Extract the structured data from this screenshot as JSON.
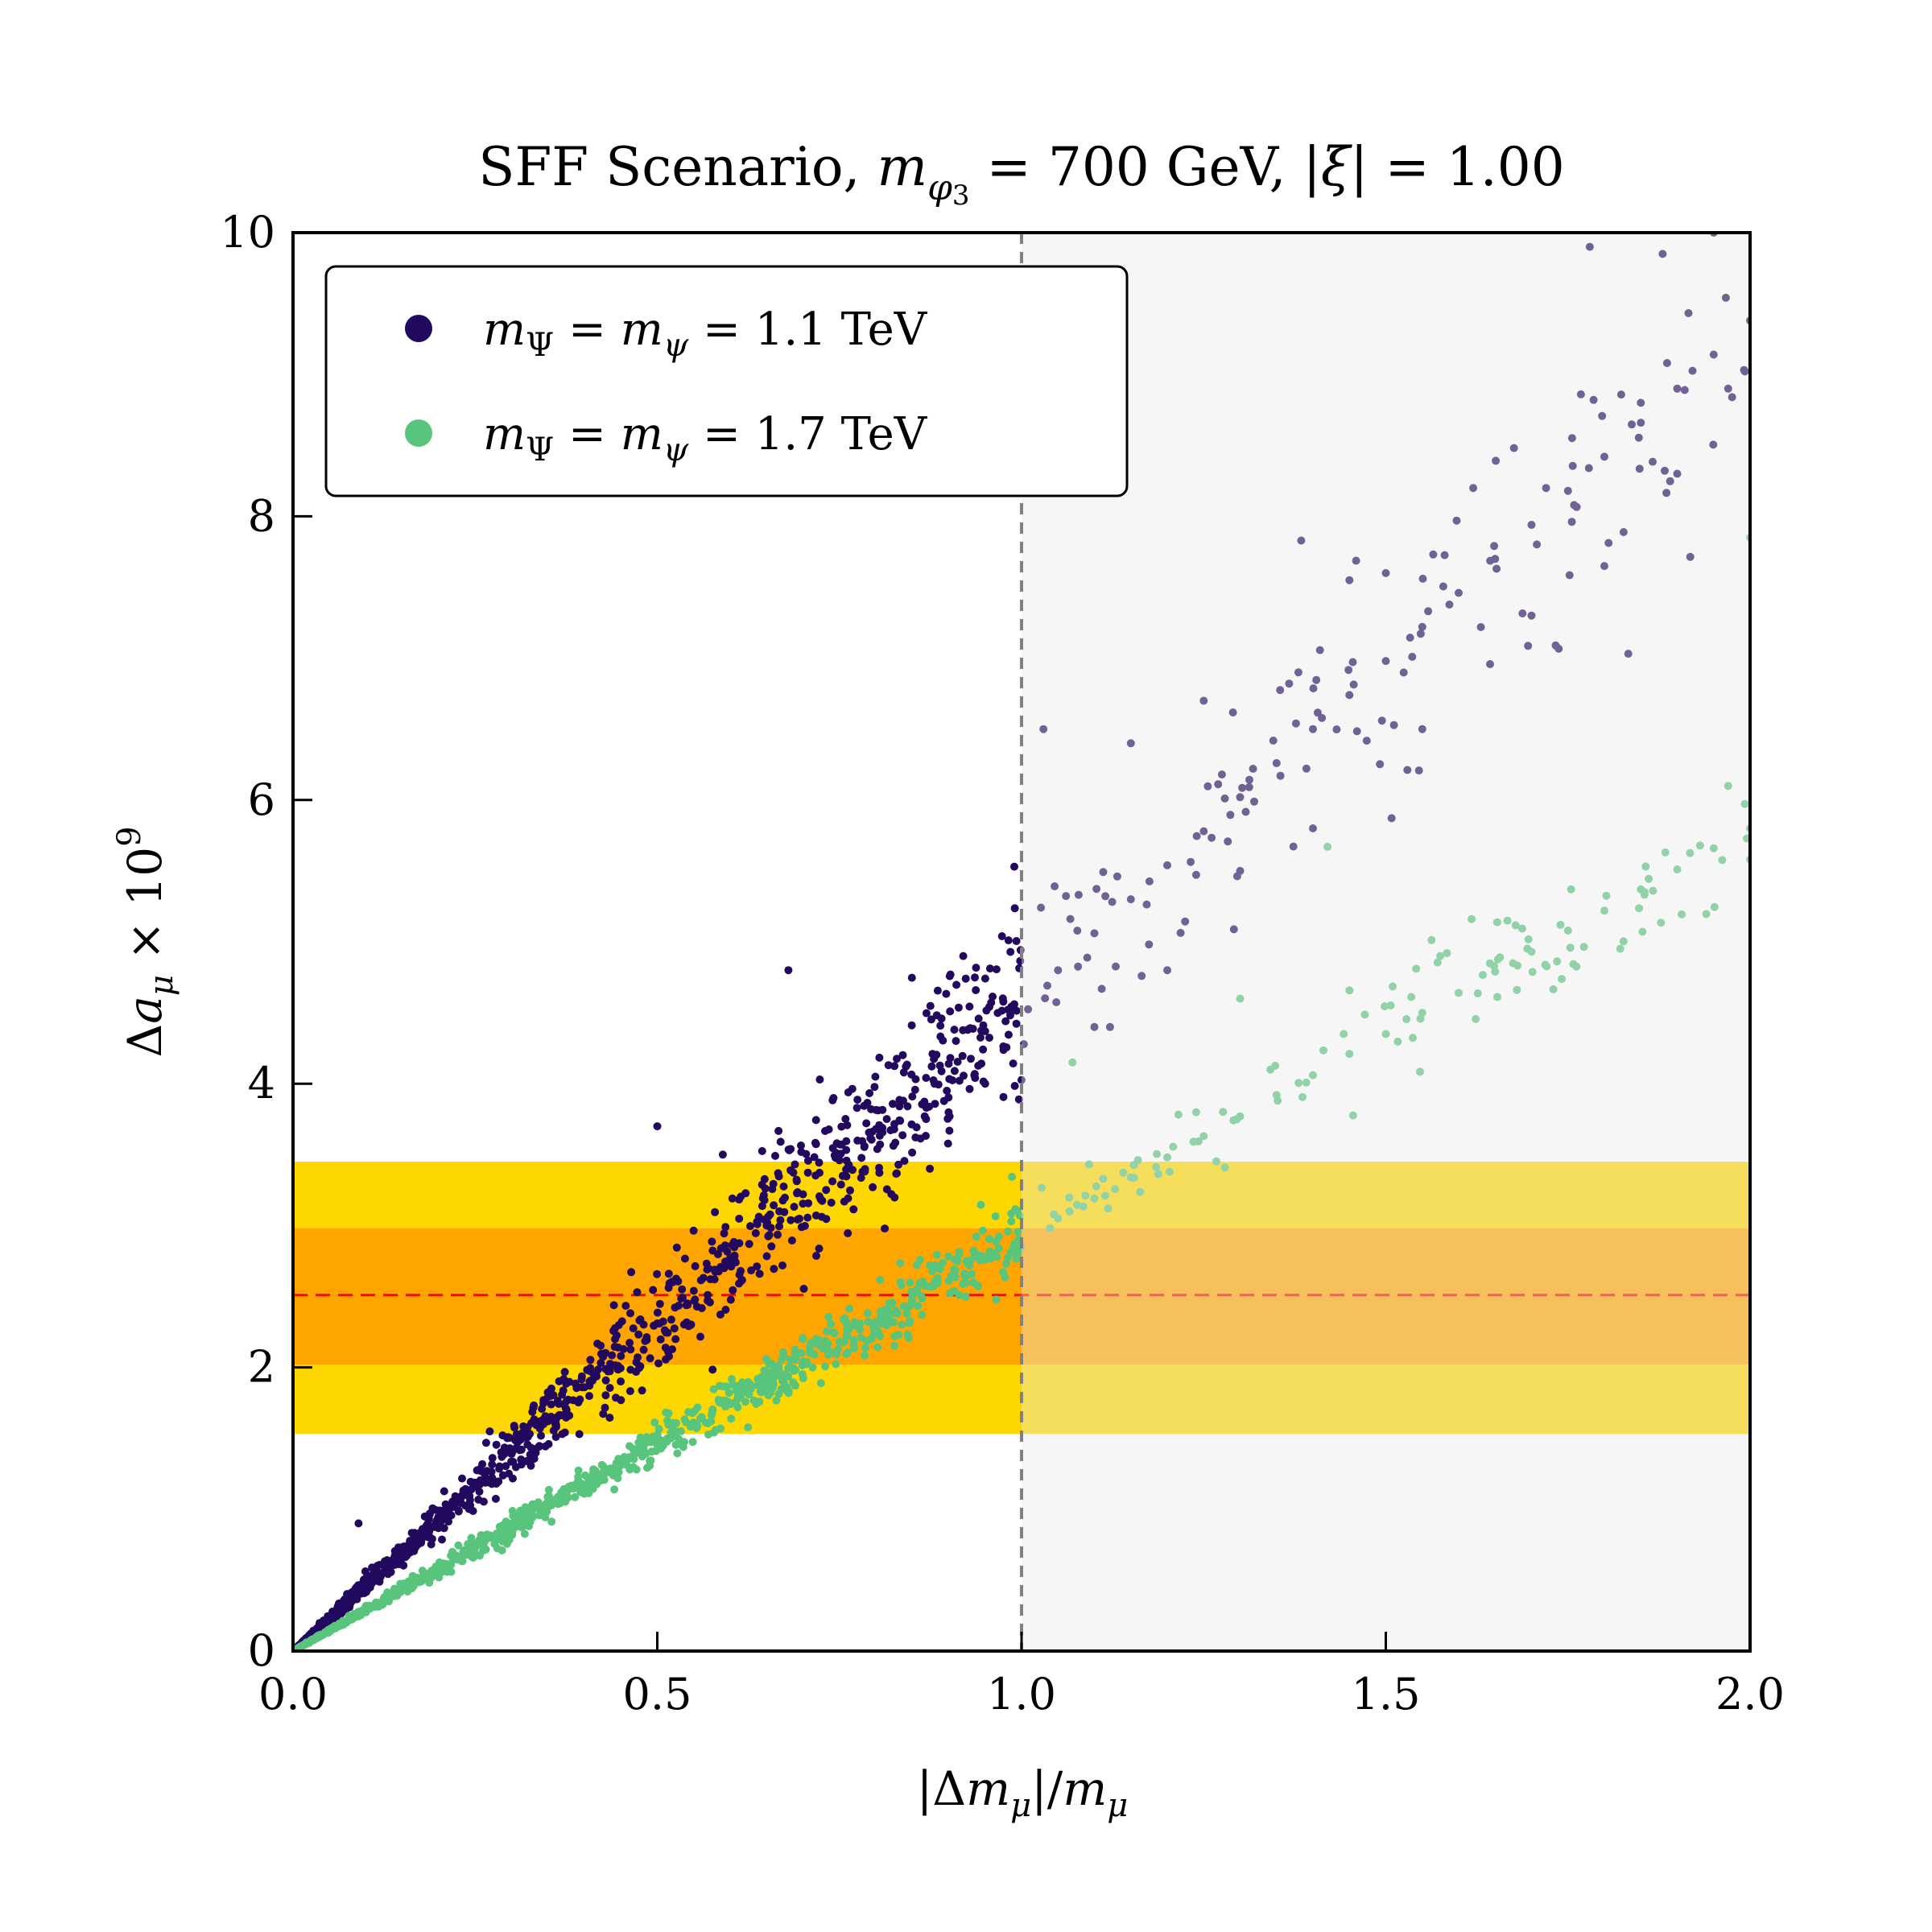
{
  "chart_data": {
    "type": "scatter",
    "title": "SFF Scenario, m_φ₃ = 700 GeV, |ξ| = 1.00",
    "xlabel": "|Δm_μ|/m_μ",
    "ylabel": "Δa_μ × 10⁹",
    "xlim": [
      0.0,
      2.0
    ],
    "ylim": [
      0,
      10
    ],
    "xticks": [
      "0.0",
      "0.5",
      "1.0",
      "1.5",
      "2.0"
    ],
    "yticks": [
      "0",
      "2",
      "4",
      "6",
      "8",
      "10"
    ],
    "grid": false,
    "legend_position": "top-left",
    "series": [
      {
        "name": "m_Ψ = m_ψ = 1.1 TeV",
        "color": "#22095e",
        "relation": "y ≈ 4.6 x",
        "x_range": [
          0.0,
          2.0
        ],
        "points": [
          [
            0.05,
            0.24
          ],
          [
            0.1,
            0.47
          ],
          [
            0.15,
            0.7
          ],
          [
            0.2,
            0.93
          ],
          [
            0.25,
            1.16
          ],
          [
            0.3,
            1.39
          ],
          [
            0.35,
            1.62
          ],
          [
            0.4,
            1.86
          ],
          [
            0.45,
            2.08
          ],
          [
            0.5,
            2.31
          ],
          [
            0.55,
            2.54
          ],
          [
            0.6,
            2.77
          ],
          [
            0.65,
            3.0
          ],
          [
            0.7,
            3.22
          ],
          [
            0.75,
            3.46
          ],
          [
            0.8,
            3.68
          ],
          [
            0.85,
            3.91
          ],
          [
            0.9,
            4.14
          ],
          [
            0.95,
            4.37
          ],
          [
            0.99,
            4.56
          ],
          [
            0.09,
            0.9
          ],
          [
            0.5,
            3.7
          ],
          [
            0.59,
            3.5
          ],
          [
            0.68,
            4.8
          ],
          [
            0.92,
            4.9
          ],
          [
            0.99,
            5.53
          ],
          [
            0.95,
            4.0
          ],
          [
            1.05,
            4.8
          ],
          [
            1.1,
            5.06
          ],
          [
            1.15,
            5.3
          ],
          [
            1.2,
            5.54
          ],
          [
            1.25,
            5.78
          ],
          [
            1.3,
            6.02
          ],
          [
            1.35,
            6.26
          ],
          [
            1.4,
            6.5
          ],
          [
            1.45,
            6.74
          ],
          [
            1.5,
            6.98
          ],
          [
            1.55,
            7.22
          ],
          [
            1.6,
            7.46
          ],
          [
            1.65,
            7.7
          ],
          [
            1.7,
            7.94
          ],
          [
            1.75,
            8.18
          ],
          [
            1.8,
            8.42
          ],
          [
            1.85,
            8.66
          ],
          [
            1.9,
            8.9
          ],
          [
            1.95,
            9.14
          ],
          [
            2.0,
            9.38
          ],
          [
            1.03,
            6.5
          ],
          [
            1.15,
            6.4
          ],
          [
            1.25,
            6.7
          ],
          [
            1.38,
            6.9
          ],
          [
            1.45,
            7.55
          ],
          [
            1.5,
            7.6
          ],
          [
            1.62,
            8.2
          ],
          [
            1.72,
            8.2
          ],
          [
            1.78,
            9.9
          ],
          [
            1.88,
            9.85
          ],
          [
            1.95,
            10.0
          ],
          [
            1.1,
            4.4
          ],
          [
            1.2,
            4.8
          ],
          [
            1.3,
            5.5
          ],
          [
            1.4,
            5.8
          ],
          [
            1.55,
            6.5
          ],
          [
            1.7,
            7.3
          ],
          [
            1.8,
            7.65
          ],
          [
            1.9,
            8.3
          ],
          [
            1.97,
            8.9
          ],
          [
            1.85,
            8.8
          ]
        ]
      },
      {
        "name": "m_Ψ = m_ψ = 1.7 TeV",
        "color": "#58c47c",
        "relation": "y ≈ 2.9 x",
        "x_range": [
          0.0,
          2.0
        ],
        "points": [
          [
            0.05,
            0.15
          ],
          [
            0.1,
            0.29
          ],
          [
            0.15,
            0.44
          ],
          [
            0.2,
            0.58
          ],
          [
            0.25,
            0.73
          ],
          [
            0.3,
            0.87
          ],
          [
            0.35,
            1.02
          ],
          [
            0.4,
            1.16
          ],
          [
            0.45,
            1.31
          ],
          [
            0.5,
            1.45
          ],
          [
            0.55,
            1.6
          ],
          [
            0.6,
            1.74
          ],
          [
            0.65,
            1.89
          ],
          [
            0.7,
            2.03
          ],
          [
            0.75,
            2.18
          ],
          [
            0.8,
            2.32
          ],
          [
            0.85,
            2.47
          ],
          [
            0.9,
            2.61
          ],
          [
            0.95,
            2.76
          ],
          [
            0.99,
            2.87
          ],
          [
            1.05,
            3.05
          ],
          [
            1.1,
            3.19
          ],
          [
            1.15,
            3.34
          ],
          [
            1.2,
            3.48
          ],
          [
            1.25,
            3.63
          ],
          [
            1.3,
            3.77
          ],
          [
            1.35,
            3.92
          ],
          [
            1.4,
            4.06
          ],
          [
            1.45,
            4.21
          ],
          [
            1.5,
            4.35
          ],
          [
            1.55,
            4.5
          ],
          [
            1.6,
            4.64
          ],
          [
            1.65,
            4.79
          ],
          [
            1.7,
            4.93
          ],
          [
            1.75,
            5.08
          ],
          [
            1.8,
            5.22
          ],
          [
            1.85,
            5.37
          ],
          [
            1.9,
            5.51
          ],
          [
            1.95,
            5.66
          ],
          [
            2.0,
            5.8
          ],
          [
            1.07,
            4.15
          ],
          [
            1.3,
            4.6
          ],
          [
            1.42,
            5.67
          ],
          [
            2.0,
            7.85
          ],
          [
            1.97,
            6.1
          ]
        ]
      }
    ],
    "reference_lines": [
      {
        "axis": "x",
        "value": 1.0,
        "style": "dashed",
        "color": "#808080"
      },
      {
        "axis": "y",
        "value": 2.51,
        "style": "dashed",
        "color": "#ff0000"
      }
    ],
    "bands": [
      {
        "y_range": [
          1.53,
          3.45
        ],
        "color": "#ffd700"
      },
      {
        "y_range": [
          2.02,
          2.98
        ],
        "color": "#ffa500"
      }
    ],
    "shaded_region": {
      "x_range": [
        1.0,
        2.0
      ],
      "color": "#e8e8e8"
    }
  }
}
